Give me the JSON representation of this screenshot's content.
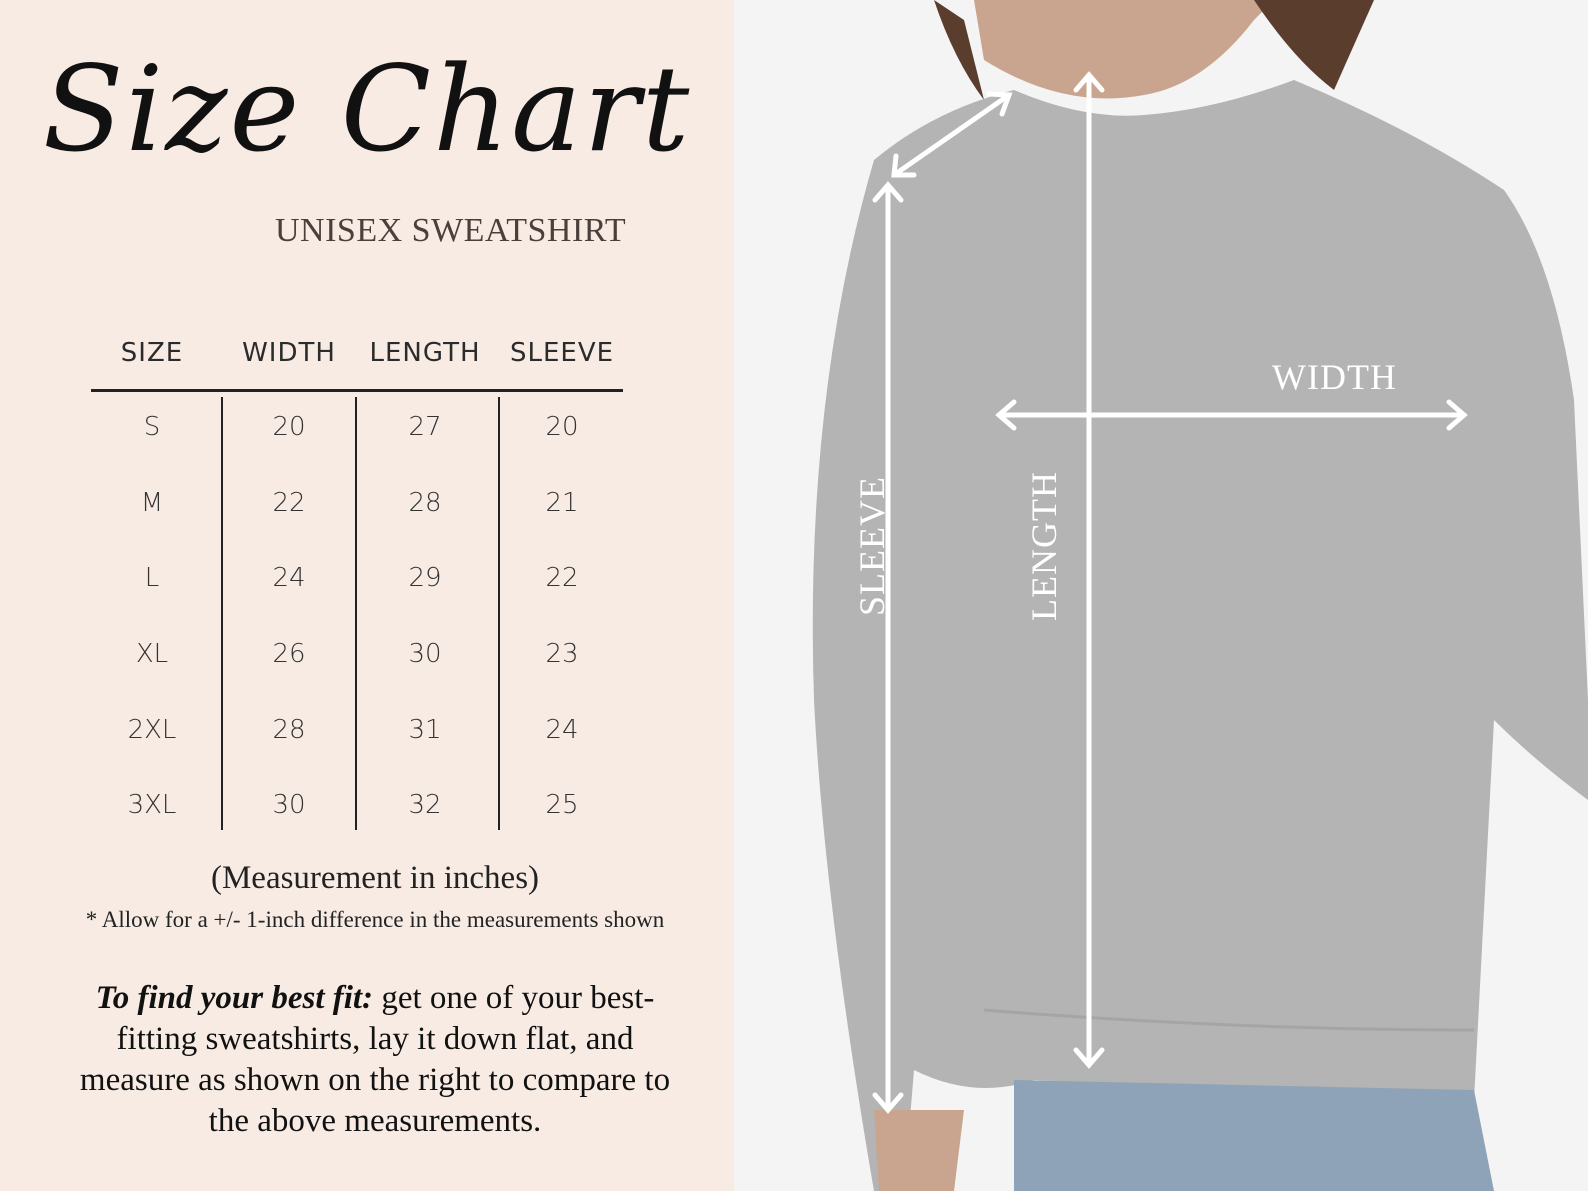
{
  "title": "Size Chart",
  "subtitle": "UNISEX SWEATSHIRT",
  "table": {
    "headers": [
      "SIZE",
      "WIDTH",
      "LENGTH",
      "SLEEVE"
    ],
    "rows": [
      [
        "S",
        "20",
        "27",
        "20"
      ],
      [
        "M",
        "22",
        "28",
        "21"
      ],
      [
        "L",
        "24",
        "29",
        "22"
      ],
      [
        "XL",
        "26",
        "30",
        "23"
      ],
      [
        "2XL",
        "28",
        "31",
        "24"
      ],
      [
        "3XL",
        "30",
        "32",
        "25"
      ]
    ]
  },
  "units_note": "(Measurement in inches)",
  "tolerance_note": "* Allow for a +/- 1-inch difference in the measurements shown",
  "fit_tip": {
    "lead": "To find your best fit:",
    "body": " get one of your best-fitting sweatshirts, lay it down flat, and measure as shown on the right to compare to the above measurements."
  },
  "diagram_labels": {
    "width": "WIDTH",
    "length": "LENGTH",
    "sleeve": "SLEEVE"
  },
  "colors": {
    "background": "#f7ebe4",
    "sweatshirt": "#b4b4b4",
    "arrows": "#ffffff"
  }
}
